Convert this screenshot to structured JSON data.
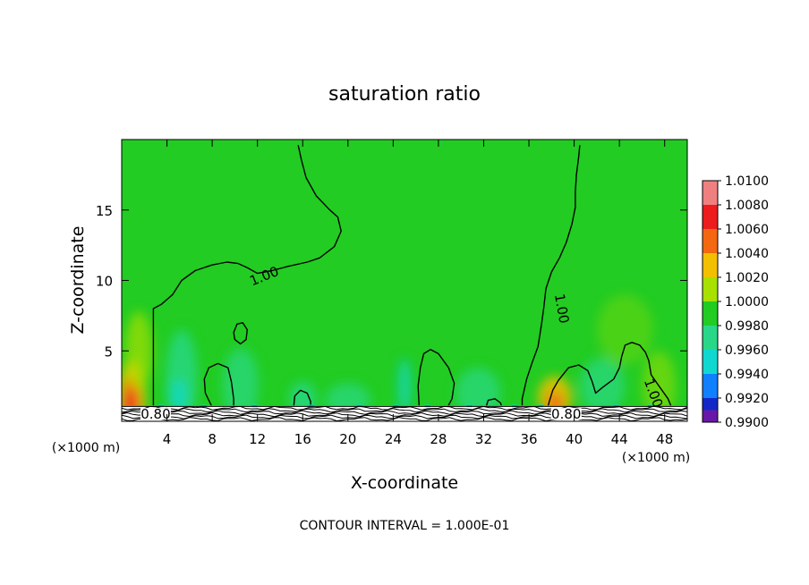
{
  "chart_data": {
    "type": "contour",
    "title": "saturation ratio",
    "xlabel": "X-coordinate",
    "ylabel": "Z-coordinate",
    "x_unit": "(×1000 m)",
    "xlim": [
      0,
      50
    ],
    "ylim": [
      0,
      20
    ],
    "x_ticks": [
      4,
      8,
      12,
      16,
      20,
      24,
      28,
      32,
      36,
      40,
      44,
      48
    ],
    "y_ticks": [
      5,
      10,
      15
    ],
    "footnote": "CONTOUR INTERVAL = 1.000E-01",
    "colorbar": {
      "levels": [
        "1.0100",
        "1.0080",
        "1.0060",
        "1.0040",
        "1.0020",
        "1.0000",
        "0.9980",
        "0.9960",
        "0.9940",
        "0.9920",
        "0.9900"
      ],
      "colors": [
        "#f08080",
        "#ee1d1d",
        "#f46810",
        "#f2c000",
        "#a8e000",
        "#22cc22",
        "#28d888",
        "#10d8d0",
        "#1080ff",
        "#1428c8",
        "#6818a8"
      ]
    },
    "contour_labels": [
      {
        "text": "1.00",
        "x": 12.6,
        "z": 10.3,
        "angle": -22
      },
      {
        "text": "1.00",
        "x": 38.9,
        "z": 8.0,
        "angle": 80
      },
      {
        "text": "1.00",
        "x": 47.0,
        "z": 2.0,
        "angle": 70
      },
      {
        "text": "0.80",
        "x": 3.0,
        "z": 0.5,
        "angle": 0
      },
      {
        "text": "0.80",
        "x": 39.3,
        "z": 0.5,
        "angle": 0
      }
    ],
    "contour_1_00": [
      [
        [
          2.8,
          0.8
        ],
        [
          2.8,
          8.0
        ],
        [
          3.5,
          8.3
        ],
        [
          4.5,
          9.0
        ],
        [
          5.3,
          10.0
        ],
        [
          6.5,
          10.7
        ],
        [
          8.0,
          11.1
        ],
        [
          9.3,
          11.3
        ],
        [
          10.3,
          11.2
        ],
        [
          11.1,
          10.9
        ],
        [
          12.0,
          10.5
        ],
        [
          13.3,
          10.7
        ],
        [
          14.7,
          11.0
        ],
        [
          16.4,
          11.3
        ],
        [
          17.5,
          11.6
        ],
        [
          18.8,
          12.4
        ],
        [
          19.4,
          13.5
        ],
        [
          19.1,
          14.5
        ],
        [
          18.4,
          15.0
        ],
        [
          17.2,
          16.0
        ],
        [
          16.3,
          17.3
        ],
        [
          15.9,
          18.5
        ],
        [
          15.6,
          19.6
        ]
      ],
      [
        [
          40.5,
          19.6
        ],
        [
          40.4,
          18.8
        ],
        [
          40.2,
          17.5
        ],
        [
          40.1,
          16.3
        ],
        [
          40.1,
          15.2
        ],
        [
          39.8,
          14.0
        ],
        [
          39.3,
          12.7
        ],
        [
          38.7,
          11.6
        ],
        [
          38.0,
          10.6
        ],
        [
          37.5,
          9.4
        ],
        [
          37.3,
          8.0
        ],
        [
          37.1,
          6.8
        ],
        [
          36.8,
          5.3
        ],
        [
          36.3,
          4.2
        ],
        [
          35.8,
          3.0
        ],
        [
          35.4,
          1.6
        ],
        [
          35.4,
          0.8
        ]
      ],
      [
        [
          48.7,
          0.8
        ],
        [
          48.3,
          1.6
        ],
        [
          47.5,
          2.5
        ],
        [
          46.8,
          3.3
        ],
        [
          46.6,
          4.3
        ],
        [
          46.3,
          4.9
        ],
        [
          45.8,
          5.4
        ],
        [
          45.1,
          5.6
        ],
        [
          44.5,
          5.4
        ],
        [
          44.2,
          4.6
        ],
        [
          44.0,
          3.8
        ],
        [
          43.5,
          3.0
        ],
        [
          42.5,
          2.4
        ],
        [
          41.9,
          2.0
        ],
        [
          41.6,
          2.8
        ],
        [
          41.2,
          3.6
        ],
        [
          40.4,
          4.0
        ],
        [
          39.5,
          3.8
        ],
        [
          38.6,
          2.9
        ],
        [
          38.1,
          2.2
        ],
        [
          37.8,
          1.4
        ],
        [
          37.6,
          0.8
        ]
      ]
    ],
    "contour_bubbles": [
      [
        [
          8.0,
          1.0
        ],
        [
          7.4,
          2.0
        ],
        [
          7.3,
          3.0
        ],
        [
          7.7,
          3.8
        ],
        [
          8.5,
          4.1
        ],
        [
          9.4,
          3.8
        ],
        [
          9.7,
          2.8
        ],
        [
          9.9,
          1.6
        ],
        [
          9.9,
          1.0
        ]
      ],
      [
        [
          10.0,
          5.8
        ],
        [
          9.9,
          6.3
        ],
        [
          10.2,
          6.9
        ],
        [
          10.7,
          7.0
        ],
        [
          11.1,
          6.5
        ],
        [
          11.0,
          5.8
        ],
        [
          10.5,
          5.5
        ],
        [
          10.0,
          5.8
        ]
      ],
      [
        [
          15.2,
          1.0
        ],
        [
          15.3,
          1.8
        ],
        [
          15.8,
          2.2
        ],
        [
          16.4,
          2.0
        ],
        [
          16.7,
          1.4
        ],
        [
          16.7,
          1.0
        ]
      ],
      [
        [
          26.3,
          1.0
        ],
        [
          26.2,
          2.5
        ],
        [
          26.4,
          3.8
        ],
        [
          26.7,
          4.8
        ],
        [
          27.3,
          5.1
        ],
        [
          28.0,
          4.8
        ],
        [
          28.9,
          3.8
        ],
        [
          29.4,
          2.7
        ],
        [
          29.2,
          1.6
        ],
        [
          28.8,
          1.0
        ]
      ],
      [
        [
          32.2,
          1.0
        ],
        [
          32.4,
          1.5
        ],
        [
          33.0,
          1.6
        ],
        [
          33.5,
          1.3
        ],
        [
          33.6,
          1.0
        ]
      ]
    ],
    "field_patches": [
      {
        "x": 0.9,
        "z": 1.6,
        "rx": 1.2,
        "rz": 2.8,
        "color": "#f2c000",
        "opacity": 0.9
      },
      {
        "x": 0.8,
        "z": 1.3,
        "rx": 0.7,
        "rz": 1.8,
        "color": "#f46810",
        "opacity": 0.95
      },
      {
        "x": 0.8,
        "z": 1.1,
        "rx": 0.5,
        "rz": 1.1,
        "color": "#ee1d1d",
        "opacity": 1.0
      },
      {
        "x": 1.5,
        "z": 5.0,
        "rx": 1.2,
        "rz": 2.8,
        "color": "#a8e000",
        "opacity": 0.7
      },
      {
        "x": 38.3,
        "z": 1.7,
        "rx": 1.5,
        "rz": 1.5,
        "color": "#f2c000",
        "opacity": 0.85
      },
      {
        "x": 38.3,
        "z": 1.3,
        "rx": 0.8,
        "rz": 0.8,
        "color": "#f46810",
        "opacity": 0.8
      },
      {
        "x": 5.3,
        "z": 3.0,
        "rx": 1.4,
        "rz": 3.5,
        "color": "#28d888",
        "opacity": 0.8
      },
      {
        "x": 5.0,
        "z": 1.8,
        "rx": 0.8,
        "rz": 1.2,
        "color": "#10d8d0",
        "opacity": 0.7
      },
      {
        "x": 10.5,
        "z": 2.6,
        "rx": 1.6,
        "rz": 2.6,
        "color": "#28d888",
        "opacity": 0.7
      },
      {
        "x": 16.0,
        "z": 1.6,
        "rx": 1.2,
        "rz": 1.2,
        "color": "#28d888",
        "opacity": 0.8
      },
      {
        "x": 20.0,
        "z": 1.5,
        "rx": 2.0,
        "rz": 1.2,
        "color": "#28d888",
        "opacity": 0.7
      },
      {
        "x": 25.0,
        "z": 2.5,
        "rx": 0.6,
        "rz": 2.0,
        "color": "#10d8d0",
        "opacity": 0.7
      },
      {
        "x": 31.5,
        "z": 2.0,
        "rx": 2.0,
        "rz": 1.8,
        "color": "#28d888",
        "opacity": 0.7
      },
      {
        "x": 42.5,
        "z": 2.5,
        "rx": 2.0,
        "rz": 2.0,
        "color": "#28d888",
        "opacity": 0.7
      },
      {
        "x": 44.5,
        "z": 6.5,
        "rx": 2.5,
        "rz": 2.5,
        "color": "#a8e000",
        "opacity": 0.3
      },
      {
        "x": 47.5,
        "z": 2.5,
        "rx": 1.5,
        "rz": 2.5,
        "color": "#a8e000",
        "opacity": 0.5
      }
    ]
  }
}
